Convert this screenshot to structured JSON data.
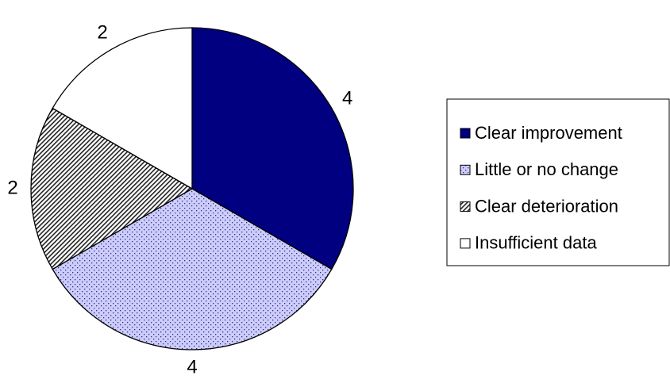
{
  "chart_data": {
    "type": "pie",
    "categories": [
      "Clear improvement",
      "Little or no change",
      "Clear deterioration",
      "Insufficient data"
    ],
    "values": [
      4,
      4,
      2,
      2
    ],
    "colors": [
      "#000080",
      "#ccccff",
      "#ffffff",
      "#ffffff"
    ],
    "patterns": [
      "solid",
      "dots",
      "stripes",
      "solid"
    ],
    "legend": "right"
  }
}
